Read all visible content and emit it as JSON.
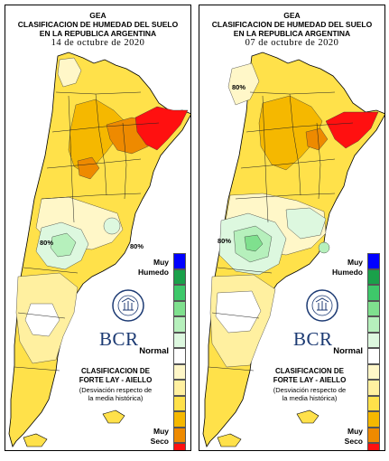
{
  "header": {
    "line1": "GEA",
    "line2": "CLASIFICACION DE HUMEDAD DEL SUELO",
    "line3": "EN LA REPUBLICA ARGENTINA"
  },
  "panels": [
    {
      "id": "left",
      "date": "14 de octubre de 2020",
      "isolines": [
        "80%",
        "80%"
      ]
    },
    {
      "id": "right",
      "date": "07 de octubre de 2020",
      "isolines": [
        "80%",
        "80%"
      ]
    }
  ],
  "legend": {
    "muy_humedo_1": "Muy",
    "muy_humedo_2": "Humedo",
    "normal": "Normal",
    "muy_seco_1": "Muy",
    "muy_seco_2": "Seco",
    "classes": [
      "#0000ff",
      "#1aa04a",
      "#3ec86a",
      "#7fe08e",
      "#b6f0bc",
      "#ddf8df",
      "#ffffff",
      "#fff7c8",
      "#fff0a0",
      "#ffe14a",
      "#f5b800",
      "#ee8a00",
      "#ff1010"
    ]
  },
  "institution": {
    "logo_text": "BCR",
    "seal_text": "BOLSA DE COMERCIO DE ROSARIO"
  },
  "classification": {
    "line1": "CLASIFICACION DE",
    "line2": "FORTE LAY - AIELLO",
    "desc1": "(Desviación respecto de",
    "desc2": "la media histórica)"
  },
  "colors": {
    "very_dry": "#ff1010",
    "dry": "#ee8a00",
    "moderately_dry": "#f5b800",
    "slightly_dry": "#ffe14a",
    "normal_light": "#fff0a0",
    "wet_light": "#ddf8df",
    "wet": "#7fe08e"
  }
}
